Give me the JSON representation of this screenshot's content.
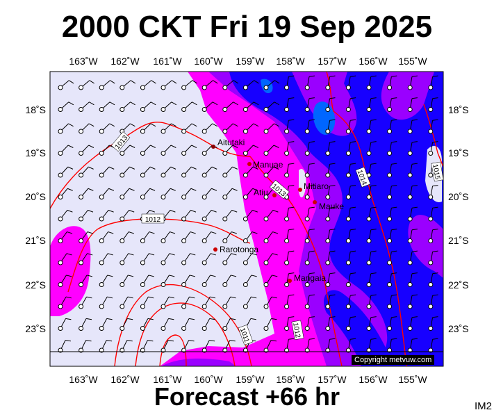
{
  "title": "2000 CKT Fri 19 Sep 2025",
  "footer": "Forecast +66 hr",
  "image_code": "IM2",
  "copyright": "Copyright metvuw.com",
  "lon_ticks": [
    "163˚W",
    "162˚W",
    "161˚W",
    "160˚W",
    "159˚W",
    "158˚W",
    "157˚W",
    "156˚W",
    "155˚W"
  ],
  "lat_ticks": [
    "18˚S",
    "19˚S",
    "20˚S",
    "21˚S",
    "22˚S",
    "23˚S"
  ],
  "places": [
    "Aitutaki",
    "Manuae",
    "Atiu",
    "Mitiaro",
    "Mauke",
    "Rarotonga",
    "Mangaia"
  ],
  "isobar_labels": [
    "1013",
    "1012",
    "1013",
    "1011",
    "1012",
    "1014",
    "1015"
  ],
  "colors": {
    "land_bg": "#e6e6fa",
    "precip_light": "#ff00ff",
    "precip_mid": "#9a00ff",
    "precip_heavy": "#0000ff",
    "precip_max": "#0066ff",
    "isobar": "#ff0000"
  }
}
